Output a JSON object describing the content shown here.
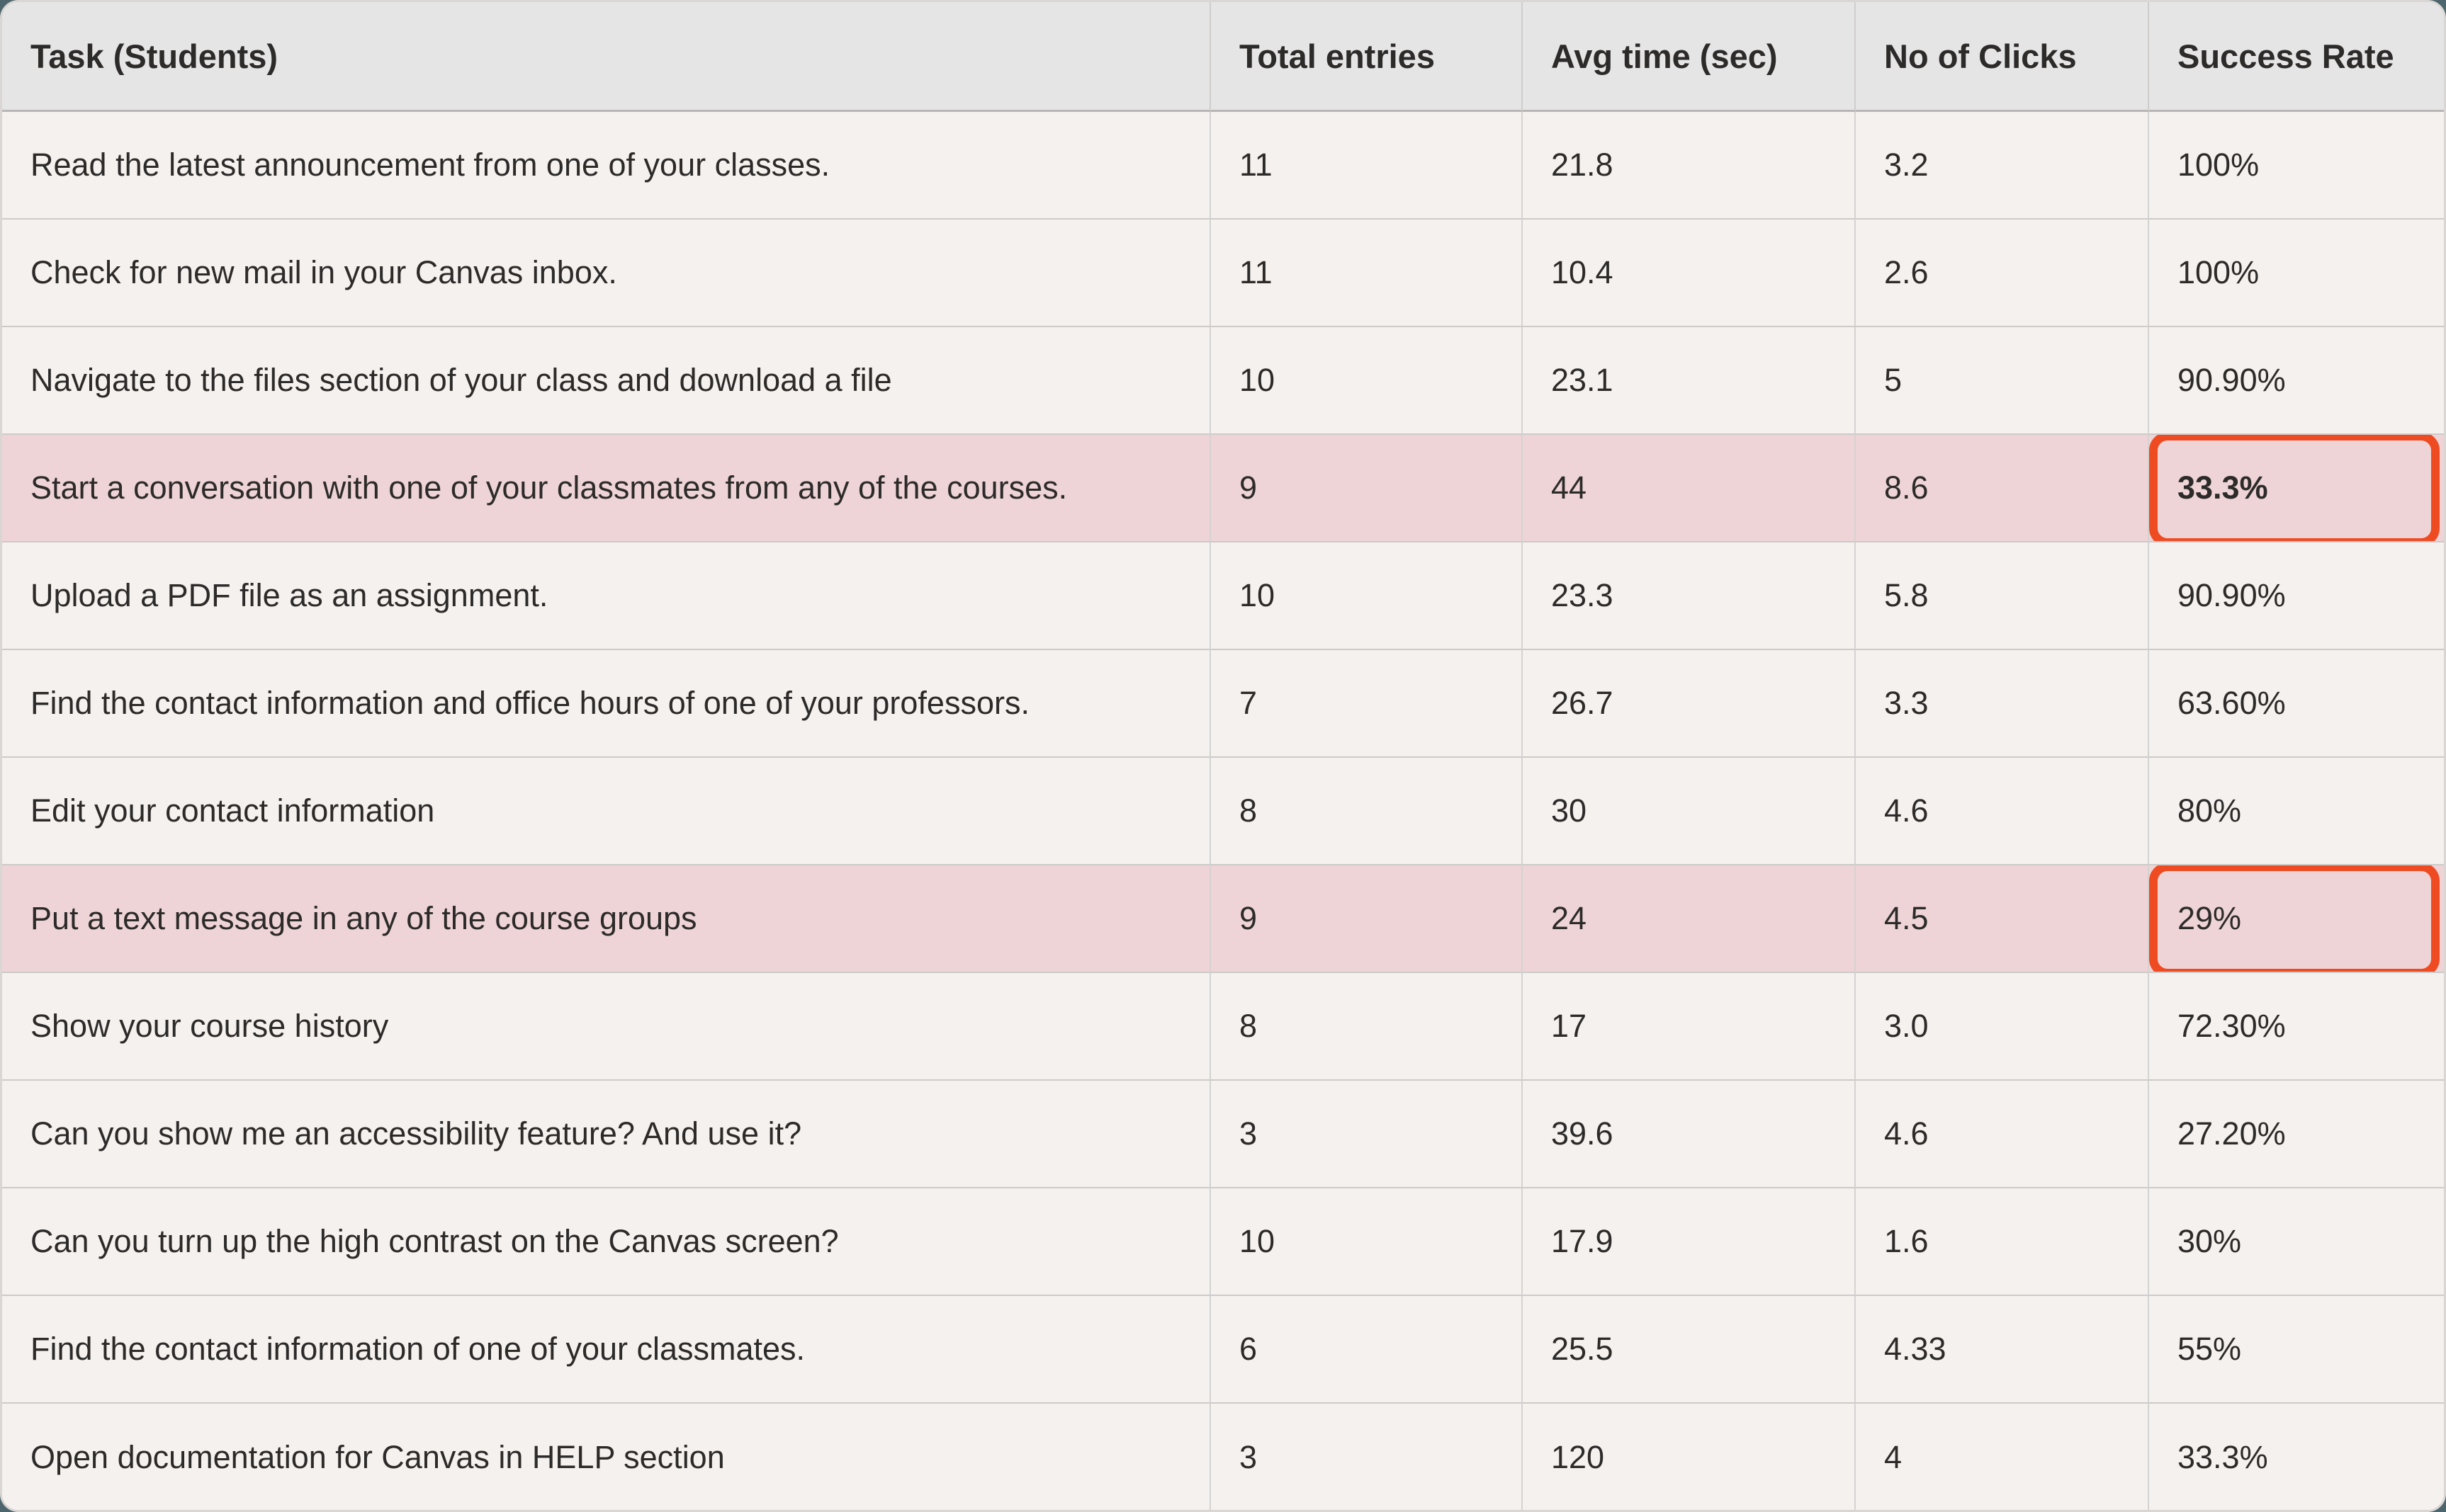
{
  "page": {
    "outer_background": "#4d666d"
  },
  "colors": {
    "header_background": "#e6e5e5",
    "row_background": "#f5f1ee",
    "highlight_row_background": "#eed4d6",
    "annotation_border": "#ef4b23",
    "text": "#2d2b2a",
    "grid_line": "#cdcaca"
  },
  "table": {
    "columns": [
      {
        "key": "task",
        "label": "Task (Students)",
        "name": "task"
      },
      {
        "key": "entries",
        "label": "Total entries",
        "name": "total-entries"
      },
      {
        "key": "avg_time",
        "label": "Avg time (sec)",
        "name": "avg-time"
      },
      {
        "key": "clicks",
        "label": "No of Clicks",
        "name": "clicks"
      },
      {
        "key": "success",
        "label": "Success Rate",
        "name": "success-rate"
      }
    ],
    "rows": [
      {
        "task": "Read the latest announcement from one of your classes.",
        "entries": "11",
        "avg_time": "21.8",
        "clicks": "3.2",
        "success": "100%",
        "highlighted": false,
        "annotated": false,
        "success_bold": false
      },
      {
        "task": "Check for new mail in your Canvas inbox.",
        "entries": "11",
        "avg_time": "10.4",
        "clicks": "2.6",
        "success": "100%",
        "highlighted": false,
        "annotated": false,
        "success_bold": false
      },
      {
        "task": "Navigate to the files section of your class and download a file",
        "entries": "10",
        "avg_time": "23.1",
        "clicks": "5",
        "success": "90.90%",
        "highlighted": false,
        "annotated": false,
        "success_bold": false
      },
      {
        "task": "Start a conversation with one of your classmates from any of the courses.",
        "entries": "9",
        "avg_time": "44",
        "clicks": "8.6",
        "success": "33.3%",
        "highlighted": true,
        "annotated": true,
        "success_bold": true
      },
      {
        "task": "Upload a PDF file as an assignment.",
        "entries": "10",
        "avg_time": "23.3",
        "clicks": "5.8",
        "success": "90.90%",
        "highlighted": false,
        "annotated": false,
        "success_bold": false
      },
      {
        "task": "Find the contact information and office hours of one of your professors.",
        "entries": "7",
        "avg_time": "26.7",
        "clicks": "3.3",
        "success": "63.60%",
        "highlighted": false,
        "annotated": false,
        "success_bold": false
      },
      {
        "task": "Edit your contact information",
        "entries": "8",
        "avg_time": "30",
        "clicks": "4.6",
        "success": "80%",
        "highlighted": false,
        "annotated": false,
        "success_bold": false
      },
      {
        "task": "Put a text message in any of the course groups",
        "entries": "9",
        "avg_time": "24",
        "clicks": "4.5",
        "success": "29%",
        "highlighted": true,
        "annotated": true,
        "success_bold": false
      },
      {
        "task": "Show your course history",
        "entries": "8",
        "avg_time": "17",
        "clicks": "3.0",
        "success": "72.30%",
        "highlighted": false,
        "annotated": false,
        "success_bold": false
      },
      {
        "task": "Can you show me an accessibility feature? And use it?",
        "entries": "3",
        "avg_time": "39.6",
        "clicks": "4.6",
        "success": "27.20%",
        "highlighted": false,
        "annotated": false,
        "success_bold": false
      },
      {
        "task": "Can you turn up the high contrast on the Canvas screen?",
        "entries": "10",
        "avg_time": "17.9",
        "clicks": "1.6",
        "success": "30%",
        "highlighted": false,
        "annotated": false,
        "success_bold": false
      },
      {
        "task": "Find the contact information of one of your classmates.",
        "entries": "6",
        "avg_time": "25.5",
        "clicks": "4.33",
        "success": "55%",
        "highlighted": false,
        "annotated": false,
        "success_bold": false
      },
      {
        "task": "Open documentation for Canvas in HELP section",
        "entries": "3",
        "avg_time": "120",
        "clicks": "4",
        "success": "33.3%",
        "highlighted": false,
        "annotated": false,
        "success_bold": false
      }
    ]
  }
}
